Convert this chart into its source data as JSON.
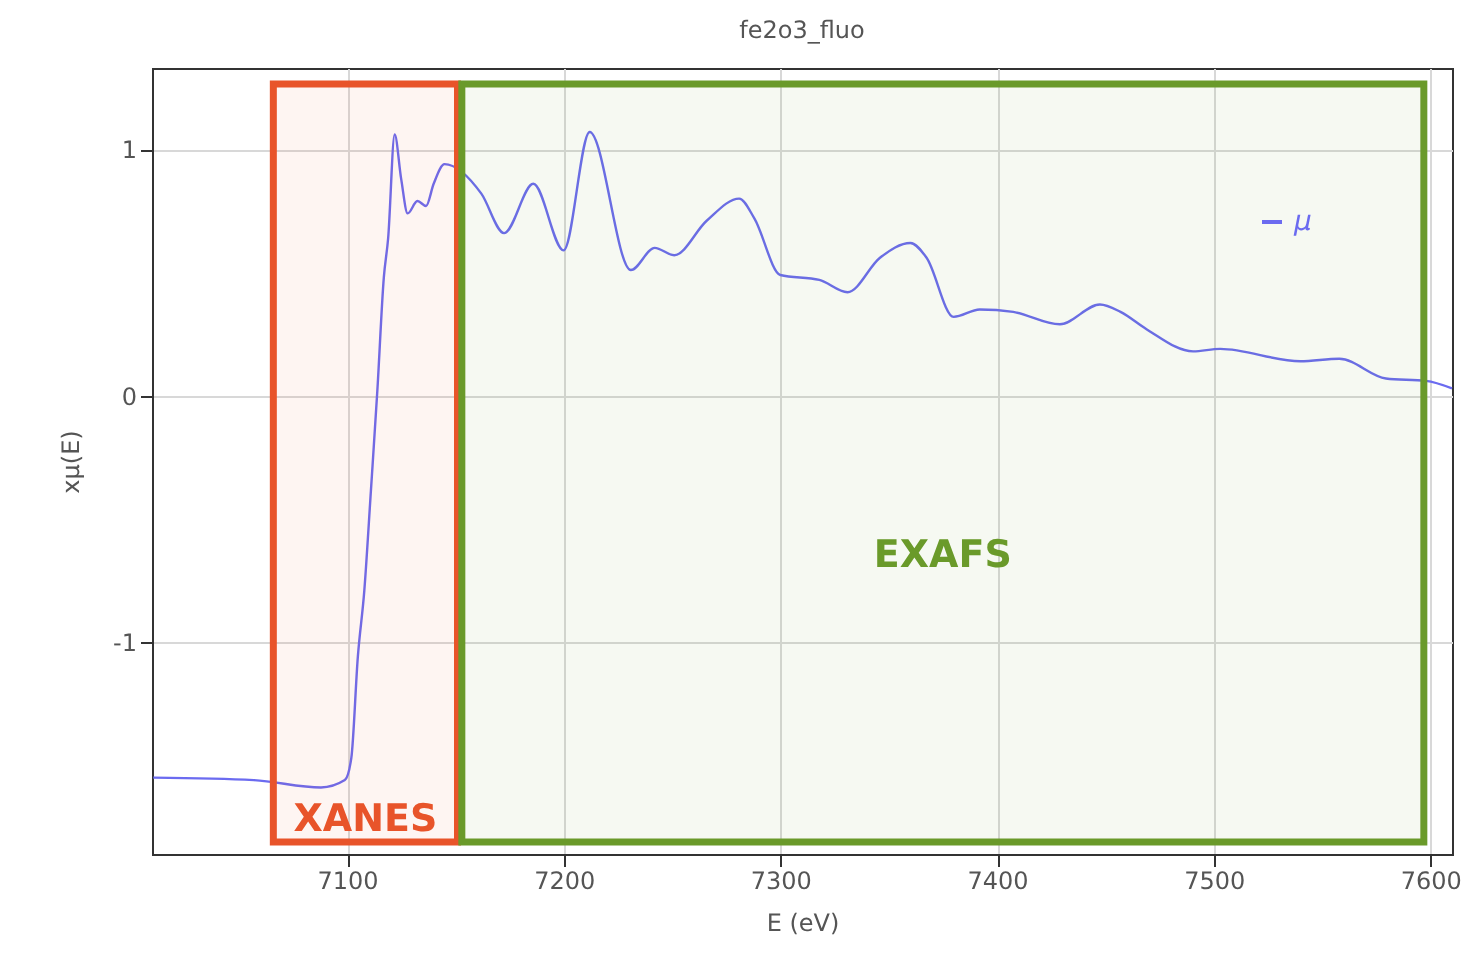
{
  "chart_data": {
    "type": "line",
    "title": "fe2o3_fluo",
    "xlabel": "E (eV)",
    "ylabel": "xμ(E)",
    "xlim": [
      7010,
      7610
    ],
    "xticks": [
      7100,
      7200,
      7300,
      7400,
      7500,
      7600
    ],
    "ylim": [
      -1.86,
      1.33
    ],
    "yticks": [
      -1,
      0,
      1
    ],
    "grid": true,
    "legend": "top right",
    "bands": [
      {
        "axis": "x",
        "from": 7066,
        "to": 7151,
        "label": "XANES",
        "color": "#e8542a"
      },
      {
        "axis": "x",
        "from": 7153,
        "to": 7597,
        "label": "EXAFS",
        "color": "#6a9a2a"
      }
    ],
    "series": [
      {
        "name": "μ",
        "color": "#6b6bf0",
        "x": [
          7010.6,
          7057,
          7088,
          7099,
          7102,
          7105,
          7108,
          7111,
          7114,
          7117,
          7119,
          7122,
          7125,
          7128,
          7132.5,
          7136.5,
          7140,
          7145,
          7162,
          7172.5,
          7186,
          7200,
          7212,
          7231,
          7242,
          7251,
          7266,
          7281,
          7288,
          7300,
          7318,
          7331,
          7346,
          7360,
          7367.5,
          7380,
          7392,
          7407.5,
          7429,
          7447.5,
          7457,
          7469,
          7490.5,
          7503,
          7540,
          7558,
          7579.5,
          7598,
          7610
        ],
        "values": [
          -1.55,
          -1.56,
          -1.59,
          -1.56,
          -1.47,
          -1.06,
          -0.79,
          -0.39,
          0.02,
          0.48,
          0.64,
          1.06,
          0.88,
          0.74,
          0.79,
          0.77,
          0.86,
          0.94,
          0.82,
          0.66,
          0.86,
          0.59,
          1.07,
          0.51,
          0.6,
          0.57,
          0.71,
          0.8,
          0.72,
          0.49,
          0.47,
          0.42,
          0.56,
          0.62,
          0.56,
          0.32,
          0.35,
          0.34,
          0.29,
          0.37,
          0.34,
          0.27,
          0.18,
          0.19,
          0.14,
          0.15,
          0.07,
          0.06,
          0.03
        ]
      }
    ]
  }
}
